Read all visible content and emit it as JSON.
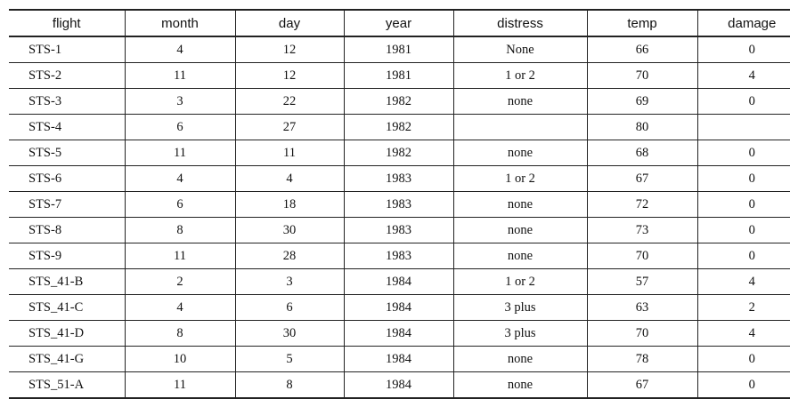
{
  "table": {
    "headers": [
      "flight",
      "month",
      "day",
      "year",
      "distress",
      "temp",
      "damage"
    ],
    "rows": [
      [
        "STS-1",
        "4",
        "12",
        "1981",
        "None",
        "66",
        "0"
      ],
      [
        "STS-2",
        "11",
        "12",
        "1981",
        "1 or 2",
        "70",
        "4"
      ],
      [
        "STS-3",
        "3",
        "22",
        "1982",
        "none",
        "69",
        "0"
      ],
      [
        "STS-4",
        "6",
        "27",
        "1982",
        "",
        "80",
        ""
      ],
      [
        "STS-5",
        "11",
        "11",
        "1982",
        "none",
        "68",
        "0"
      ],
      [
        "STS-6",
        "4",
        "4",
        "1983",
        "1 or 2",
        "67",
        "0"
      ],
      [
        "STS-7",
        "6",
        "18",
        "1983",
        "none",
        "72",
        "0"
      ],
      [
        "STS-8",
        "8",
        "30",
        "1983",
        "none",
        "73",
        "0"
      ],
      [
        "STS-9",
        "11",
        "28",
        "1983",
        "none",
        "70",
        "0"
      ],
      [
        "STS_41-B",
        "2",
        "3",
        "1984",
        "1 or 2",
        "57",
        "4"
      ],
      [
        "STS_41-C",
        "4",
        "6",
        "1984",
        "3 plus",
        "63",
        "2"
      ],
      [
        "STS_41-D",
        "8",
        "30",
        "1984",
        "3 plus",
        "70",
        "4"
      ],
      [
        "STS_41-G",
        "10",
        "5",
        "1984",
        "none",
        "78",
        "0"
      ],
      [
        "STS_51-A",
        "11",
        "8",
        "1984",
        "none",
        "67",
        "0"
      ]
    ]
  }
}
